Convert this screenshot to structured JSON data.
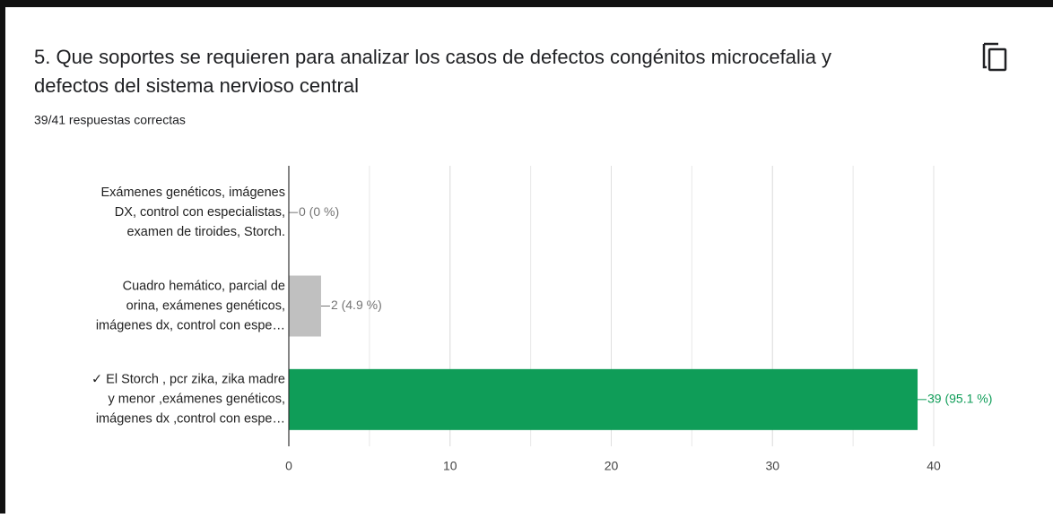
{
  "chart_data": {
    "type": "bar",
    "orientation": "horizontal",
    "title": [
      "5. Que soportes se requieren para analizar los casos de defectos congénitos microcefalia y",
      "defectos del sistema nervioso central"
    ],
    "subtitle": "39/41 respuestas correctas",
    "categories": [
      [
        "Exámenes genéticos, imágenes",
        "DX, control con especialistas,",
        "examen de tiroides, Storch."
      ],
      [
        "Cuadro hemático, parcial de",
        "orina, exámenes genéticos,",
        "imágenes dx, control con espe…"
      ],
      [
        "✓ El Storch , pcr zika, zika madre",
        "y menor ,exámenes genéticos,",
        "imágenes dx ,control con espe…"
      ]
    ],
    "values": [
      0,
      2,
      39
    ],
    "value_labels": [
      "0 (0 %)",
      "2 (4.9 %)",
      "39 (95.1 %)"
    ],
    "colors": [
      "#c0c0c0",
      "#c0c0c0",
      "#0f9d58"
    ],
    "label_colors": [
      "#757575",
      "#757575",
      "#0f9d58"
    ],
    "xlim": [
      0,
      40
    ],
    "xticks": [
      0,
      10,
      20,
      30,
      40
    ],
    "minor_grid_step": 5,
    "grid": true
  }
}
